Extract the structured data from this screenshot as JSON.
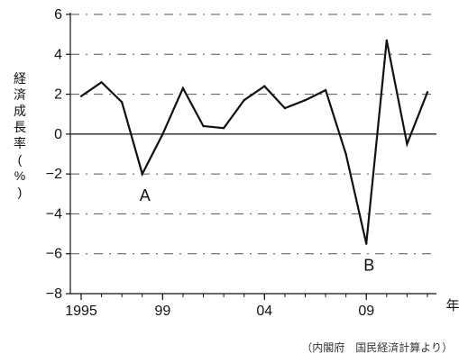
{
  "chart_data": {
    "type": "line",
    "x": [
      1995,
      1996,
      1997,
      1998,
      1999,
      2000,
      2001,
      2002,
      2003,
      2004,
      2005,
      2006,
      2007,
      2008,
      2009,
      2010,
      2011,
      2012
    ],
    "series": [
      {
        "values": [
          1.9,
          2.6,
          1.6,
          -2.0,
          0.0,
          2.3,
          0.4,
          0.3,
          1.7,
          2.4,
          1.3,
          1.7,
          2.2,
          -1.0,
          -5.5,
          4.7,
          -0.5,
          2.1
        ]
      }
    ],
    "x_tick_labels": [
      "1995",
      "99",
      "04",
      "09"
    ],
    "x_tick_values": [
      1995,
      1999,
      2004,
      2009
    ],
    "x_unit": "年",
    "ylabel": "経済成長率(%)",
    "y_ticks": [
      6,
      4,
      2,
      0,
      -2,
      -4,
      -6,
      -8
    ],
    "ylim": [
      -8,
      6
    ],
    "xlim": [
      1995,
      2012
    ],
    "annotations": [
      {
        "text": "A",
        "x": 1998,
        "y": -2.0
      },
      {
        "text": "B",
        "x": 2009,
        "y": -5.5
      }
    ],
    "source": "（内閣府　国民経済計算より）",
    "grid": true,
    "line_color": "#111111",
    "grid_color": "#555555"
  }
}
